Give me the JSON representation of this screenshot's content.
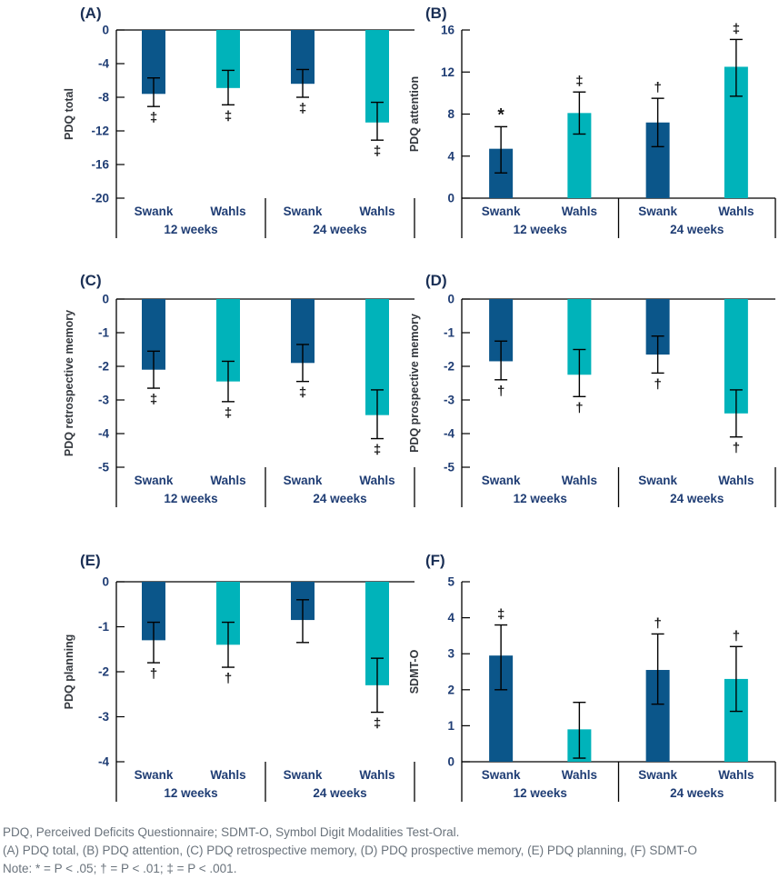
{
  "colors": {
    "swank_bar": "#0b568a",
    "wahls_bar": "#00b3ba",
    "tick_text": "#1f3d74",
    "category_text": "#1f3d74",
    "axis_title_text": "#33373d",
    "panel_label_text": "#1a2f55",
    "marker_text": "#151515",
    "line": "#000000",
    "footer_text": "#6a737c"
  },
  "footer": {
    "lines": [
      "PDQ, Perceived Deficits Questionnaire; SDMT-O, Symbol Digit Modalities Test-Oral.",
      "(A) PDQ total, (B) PDQ attention, (C) PDQ retrospective memory, (D) PDQ prospective memory, (E) PDQ planning, (F) SDMT-O",
      "Note: * = P < .05; † = P < .01; ‡ = P < .001."
    ]
  },
  "chart_data": [
    {
      "type": "bar",
      "panel": "A",
      "title": "(A)",
      "ylabel": "PDQ total",
      "ylim": [
        -20,
        0
      ],
      "yticks": [
        0,
        -4,
        -8,
        -12,
        -16,
        -20
      ],
      "group_labels": [
        "12 weeks",
        "24 weeks"
      ],
      "bars": [
        {
          "category": "Swank",
          "group": 0,
          "series": "swank",
          "value": -7.6,
          "err_range": [
            -9.1,
            -5.7
          ],
          "sig": "‡"
        },
        {
          "category": "Wahls",
          "group": 0,
          "series": "wahls",
          "value": -6.9,
          "err_range": [
            -8.9,
            -4.8
          ],
          "sig": "‡"
        },
        {
          "category": "Swank",
          "group": 1,
          "series": "swank",
          "value": -6.4,
          "err_range": [
            -8.0,
            -4.7
          ],
          "sig": "‡"
        },
        {
          "category": "Wahls",
          "group": 1,
          "series": "wahls",
          "value": -11.0,
          "err_range": [
            -13.1,
            -8.6
          ],
          "sig": "‡"
        }
      ]
    },
    {
      "type": "bar",
      "panel": "B",
      "title": "(B)",
      "ylabel": "PDQ attention",
      "ylim": [
        0,
        16
      ],
      "yticks": [
        0,
        4,
        8,
        12,
        16
      ],
      "group_labels": [
        "12 weeks",
        "24 weeks"
      ],
      "bars": [
        {
          "category": "Swank",
          "group": 0,
          "series": "swank",
          "value": 4.7,
          "err_range": [
            2.4,
            6.8
          ],
          "sig": "*"
        },
        {
          "category": "Wahls",
          "group": 0,
          "series": "wahls",
          "value": 8.1,
          "err_range": [
            6.1,
            10.1
          ],
          "sig": "‡"
        },
        {
          "category": "Swank",
          "group": 1,
          "series": "swank",
          "value": 7.2,
          "err_range": [
            4.9,
            9.5
          ],
          "sig": "†"
        },
        {
          "category": "Wahls",
          "group": 1,
          "series": "wahls",
          "value": 12.5,
          "err_range": [
            9.7,
            15.1
          ],
          "sig": "‡"
        }
      ]
    },
    {
      "type": "bar",
      "panel": "C",
      "title": "(C)",
      "ylabel": "PDQ retrospective memory",
      "ylim": [
        -5,
        0
      ],
      "yticks": [
        0,
        -1,
        -2,
        -3,
        -4,
        -5
      ],
      "group_labels": [
        "12 weeks",
        "24 weeks"
      ],
      "bars": [
        {
          "category": "Swank",
          "group": 0,
          "series": "swank",
          "value": -2.1,
          "err_range": [
            -2.65,
            -1.55
          ],
          "sig": "‡"
        },
        {
          "category": "Wahls",
          "group": 0,
          "series": "wahls",
          "value": -2.45,
          "err_range": [
            -3.05,
            -1.85
          ],
          "sig": "‡"
        },
        {
          "category": "Swank",
          "group": 1,
          "series": "swank",
          "value": -1.9,
          "err_range": [
            -2.45,
            -1.35
          ],
          "sig": "‡"
        },
        {
          "category": "Wahls",
          "group": 1,
          "series": "wahls",
          "value": -3.45,
          "err_range": [
            -4.15,
            -2.7
          ],
          "sig": "‡"
        }
      ]
    },
    {
      "type": "bar",
      "panel": "D",
      "title": "(D)",
      "ylabel": "PDQ prospective memory",
      "ylim": [
        -5,
        0
      ],
      "yticks": [
        0,
        -1,
        -2,
        -3,
        -4,
        -5
      ],
      "group_labels": [
        "12 weeks",
        "24 weeks"
      ],
      "bars": [
        {
          "category": "Swank",
          "group": 0,
          "series": "swank",
          "value": -1.85,
          "err_range": [
            -2.4,
            -1.25
          ],
          "sig": "†"
        },
        {
          "category": "Wahls",
          "group": 0,
          "series": "wahls",
          "value": -2.25,
          "err_range": [
            -2.9,
            -1.5
          ],
          "sig": "†"
        },
        {
          "category": "Swank",
          "group": 1,
          "series": "swank",
          "value": -1.65,
          "err_range": [
            -2.2,
            -1.1
          ],
          "sig": "†"
        },
        {
          "category": "Wahls",
          "group": 1,
          "series": "wahls",
          "value": -3.4,
          "err_range": [
            -4.1,
            -2.7
          ],
          "sig": "†"
        }
      ]
    },
    {
      "type": "bar",
      "panel": "E",
      "title": "(E)",
      "ylabel": "PDQ planning",
      "ylim": [
        -4,
        0
      ],
      "yticks": [
        0,
        -1,
        -2,
        -3,
        -4
      ],
      "group_labels": [
        "12 weeks",
        "24 weeks"
      ],
      "bars": [
        {
          "category": "Swank",
          "group": 0,
          "series": "swank",
          "value": -1.3,
          "err_range": [
            -1.8,
            -0.9
          ],
          "sig": "†"
        },
        {
          "category": "Wahls",
          "group": 0,
          "series": "wahls",
          "value": -1.4,
          "err_range": [
            -1.9,
            -0.9
          ],
          "sig": "†"
        },
        {
          "category": "Swank",
          "group": 1,
          "series": "swank",
          "value": -0.85,
          "err_range": [
            -1.35,
            -0.4
          ],
          "sig": ""
        },
        {
          "category": "Wahls",
          "group": 1,
          "series": "wahls",
          "value": -2.3,
          "err_range": [
            -2.9,
            -1.7
          ],
          "sig": "‡"
        }
      ]
    },
    {
      "type": "bar",
      "panel": "F",
      "title": "(F)",
      "ylabel": "SDMT-O",
      "ylim": [
        0,
        5
      ],
      "yticks": [
        0,
        1,
        2,
        3,
        4,
        5
      ],
      "group_labels": [
        "12 weeks",
        "24 weeks"
      ],
      "bars": [
        {
          "category": "Swank",
          "group": 0,
          "series": "swank",
          "value": 2.95,
          "err_range": [
            2.0,
            3.8
          ],
          "sig": "‡"
        },
        {
          "category": "Wahls",
          "group": 0,
          "series": "wahls",
          "value": 0.9,
          "err_range": [
            0.1,
            1.65
          ],
          "sig": ""
        },
        {
          "category": "Swank",
          "group": 1,
          "series": "swank",
          "value": 2.55,
          "err_range": [
            1.6,
            3.55
          ],
          "sig": "†"
        },
        {
          "category": "Wahls",
          "group": 1,
          "series": "wahls",
          "value": 2.3,
          "err_range": [
            1.4,
            3.2
          ],
          "sig": "†"
        }
      ]
    }
  ]
}
